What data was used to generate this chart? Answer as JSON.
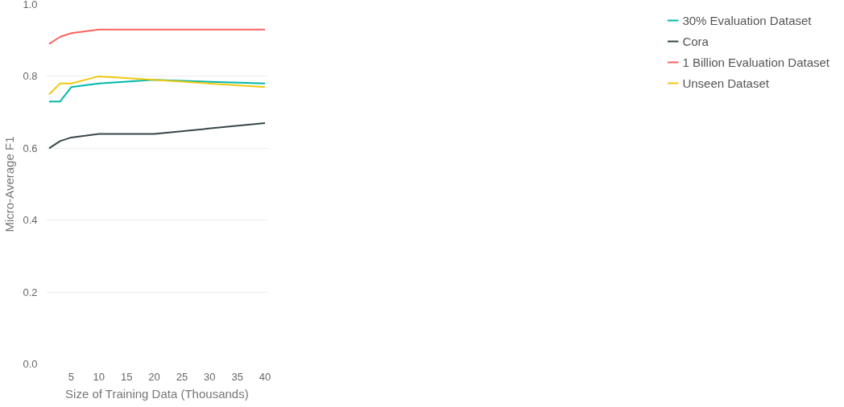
{
  "chart_data": {
    "type": "line",
    "xlabel": "Size of Training Data (Thousands)",
    "ylabel": "Micro-Average F1",
    "x": [
      1,
      3,
      5,
      10,
      20,
      40
    ],
    "series": [
      {
        "name": "30% Evaluation Dataset",
        "color": "#01b8aa",
        "values": [
          0.73,
          0.73,
          0.77,
          0.78,
          0.79,
          0.78
        ]
      },
      {
        "name": "Cora",
        "color": "#374649",
        "values": [
          0.6,
          0.62,
          0.63,
          0.64,
          0.64,
          0.67
        ]
      },
      {
        "name": "1 Billion Evaluation Dataset",
        "color": "#fd625e",
        "values": [
          0.89,
          0.91,
          0.92,
          0.93,
          0.93,
          0.93
        ]
      },
      {
        "name": "Unseen Dataset",
        "color": "#f2c80f",
        "values": [
          0.75,
          0.78,
          0.78,
          0.8,
          0.79,
          0.77
        ]
      }
    ],
    "xlim": [
      0.5,
      40.5
    ],
    "xticks": [
      5,
      10,
      15,
      20,
      25,
      30,
      35,
      40
    ],
    "ylim": [
      0,
      1.0
    ],
    "yticks": [
      {
        "value": 0,
        "label": "0.0"
      },
      0.2,
      0.4,
      0.6,
      0.8,
      {
        "value": 1.0,
        "label": "1.0"
      }
    ],
    "grid": "y",
    "legend": "right",
    "marker": "none",
    "line_style": "solid"
  }
}
